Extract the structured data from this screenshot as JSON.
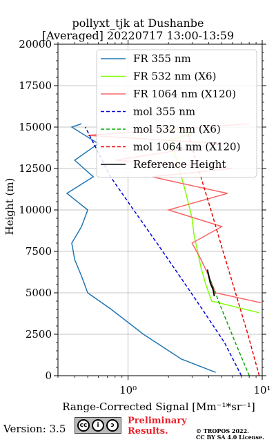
{
  "header": {
    "title_line1": "pollyxt_tjk at Dushanbe",
    "title_line2": "[Averaged] 20220717 13:00-13:59"
  },
  "footer": {
    "version": "Version: 3.5",
    "prelim_line1": "Preliminary",
    "prelim_line2": "Results.",
    "copyright_line1": "© TROPOS 2022.",
    "copyright_line2": "CC BY SA 4.0 License.",
    "cc_icon": "cc-by-sa-icon"
  },
  "chart_data": {
    "type": "line",
    "title": "pollyxt_tjk at Dushanbe [Averaged] 20220717 13:00-13:59",
    "xlabel": "Range-Corrected Signal [Mm⁻¹*sr⁻¹]",
    "ylabel": "Height (m)",
    "x_scale": "log",
    "xlim": [
      0.3,
      10
    ],
    "ylim": [
      0,
      20000
    ],
    "grid": true,
    "legend_position": "top-right",
    "x_ticks": [
      {
        "label": "10⁰",
        "value": 1
      },
      {
        "label": "10¹",
        "value": 10
      }
    ],
    "y_ticks": [
      "0",
      "2500",
      "5000",
      "7500",
      "10000",
      "12500",
      "15000",
      "17500",
      "20000"
    ],
    "series": [
      {
        "name": "FR 355 nm",
        "color": "#1f77b4",
        "style": "solid",
        "x": [
          4.5,
          2.5,
          1.3,
          0.75,
          0.5,
          0.45,
          0.4,
          0.38,
          0.45,
          0.5,
          0.35,
          0.55,
          0.4,
          0.6,
          0.38,
          0.45
        ],
        "y": [
          200,
          1000,
          2500,
          4000,
          5000,
          6000,
          7000,
          8000,
          9000,
          10000,
          11000,
          12000,
          13000,
          14000,
          15000,
          15200
        ]
      },
      {
        "name": "FR 532 nm (X6)",
        "color": "#7fff00",
        "style": "solid",
        "x": [
          9.5,
          4.2,
          3.8,
          3.5,
          3.3,
          3.1,
          3.0,
          2.8,
          2.6,
          2.4,
          2.2,
          2.0,
          3.0,
          2.0
        ],
        "y": [
          3800,
          4500,
          5500,
          6500,
          7500,
          8500,
          9500,
          10500,
          11500,
          12500,
          13500,
          14200,
          14600,
          15000
        ]
      },
      {
        "name": "FR 1064 nm (X120)",
        "color": "#fa6464",
        "style": "solid",
        "x": [
          9.8,
          4.5,
          4.0,
          3.5,
          3.0,
          5.0,
          2.0,
          5.5,
          1.5,
          6.0,
          0.8,
          5.0,
          0.5,
          8.0
        ],
        "y": [
          4400,
          5000,
          6000,
          7000,
          8000,
          9000,
          10000,
          11000,
          12000,
          12500,
          13000,
          14000,
          14500,
          15200
        ]
      },
      {
        "name": "mol 355 nm",
        "color": "#0000dd",
        "style": "dashed",
        "x": [
          7.0,
          5.23,
          3.58,
          2.43,
          1.64,
          1.1,
          0.74,
          0.48
        ],
        "y": [
          0,
          2000,
          4000,
          6000,
          8000,
          10000,
          12000,
          15000
        ]
      },
      {
        "name": "mol 532 nm (X6)",
        "color": "#00aa00",
        "style": "dashed",
        "x": [
          8.0,
          6.3,
          5.0,
          4.0
        ],
        "y": [
          0,
          2000,
          4000,
          6000
        ]
      },
      {
        "name": "mol 1064 nm (X120)",
        "color": "#ee0000",
        "style": "dashed",
        "x": [
          9.5,
          7.82,
          6.32,
          5.11,
          4.14,
          3.34,
          2.71
        ],
        "y": [
          0,
          2500,
          5000,
          7500,
          10000,
          12500,
          15000
        ]
      },
      {
        "name": "Reference Height",
        "color": "#000000",
        "style": "solid",
        "x": [
          4.4,
          4.3,
          4.1,
          4.0,
          3.9
        ],
        "y": [
          4800,
          5200,
          5600,
          6000,
          6400
        ]
      }
    ]
  }
}
